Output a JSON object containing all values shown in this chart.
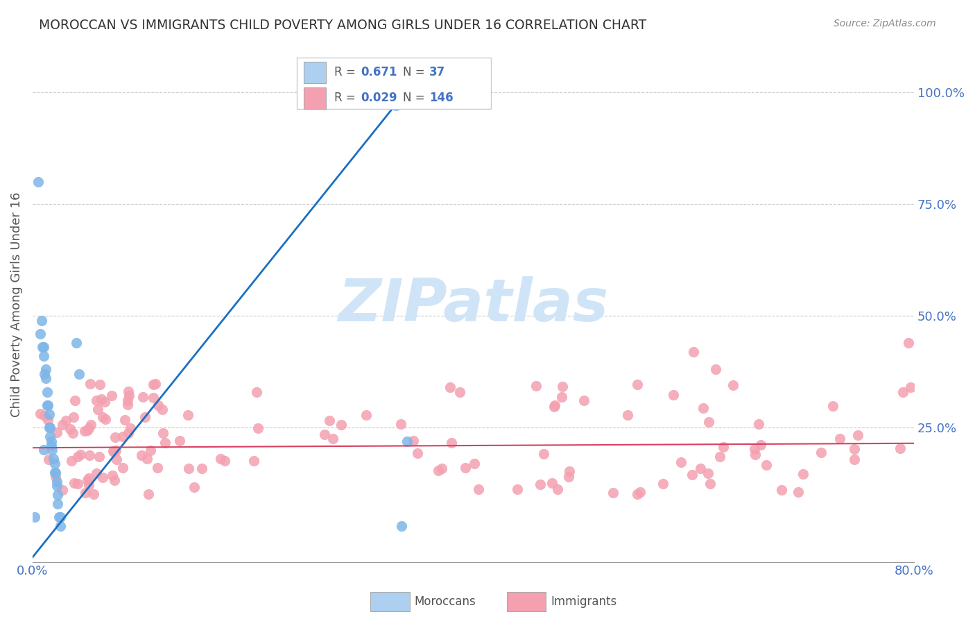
{
  "title": "MOROCCAN VS IMMIGRANTS CHILD POVERTY AMONG GIRLS UNDER 16 CORRELATION CHART",
  "source": "Source: ZipAtlas.com",
  "ylabel": "Child Poverty Among Girls Under 16",
  "ytick_labels": [
    "100.0%",
    "75.0%",
    "50.0%",
    "25.0%"
  ],
  "ytick_values": [
    1.0,
    0.75,
    0.5,
    0.25
  ],
  "xlim": [
    0.0,
    0.8
  ],
  "ylim": [
    -0.05,
    1.1
  ],
  "moroccan_R": 0.671,
  "moroccan_N": 37,
  "immigrant_R": 0.029,
  "immigrant_N": 146,
  "moroccan_color": "#7eb6e8",
  "immigrant_color": "#f4a0b0",
  "trendline_moroccan_color": "#1a6fc4",
  "trendline_immigrant_color": "#d94060",
  "watermark_color": "#d0e4f7",
  "title_color": "#333333",
  "axis_label_color": "#4472c4",
  "legend_box_moroccan": "#aed0f0",
  "legend_box_immigrant": "#f4a0b0"
}
